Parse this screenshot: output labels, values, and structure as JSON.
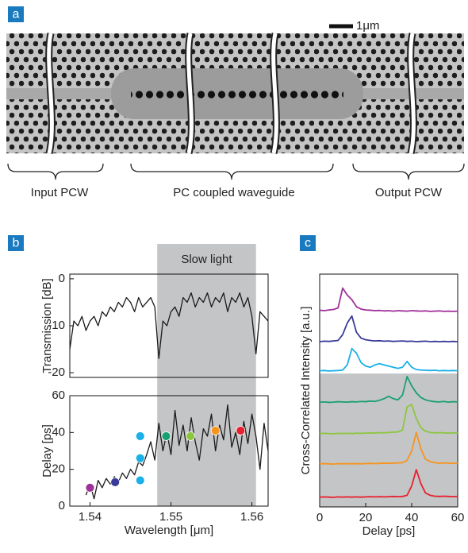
{
  "panels": {
    "a": "a",
    "b": "b",
    "c": "c"
  },
  "figure_a": {
    "scale_bar": "1μm",
    "regions": [
      "Input PCW",
      "PC coupled waveguide",
      "Output PCW"
    ]
  },
  "chart_data": [
    {
      "type": "line",
      "ylabel": "Transmission [dB]",
      "color": "#1a1a1a",
      "xlim": [
        1.5375,
        1.562
      ],
      "ylim": [
        -21,
        1
      ],
      "yticks": [
        0,
        -10,
        -20
      ],
      "highlight": {
        "label": "Slow light",
        "xrange": [
          1.5483,
          1.5605
        ]
      },
      "x": [
        1.5375,
        1.538,
        1.5385,
        1.539,
        1.5395,
        1.54,
        1.5405,
        1.541,
        1.5415,
        1.542,
        1.5425,
        1.543,
        1.5435,
        1.544,
        1.5445,
        1.545,
        1.5455,
        1.546,
        1.5465,
        1.547,
        1.5475,
        1.548,
        1.5485,
        1.549,
        1.5495,
        1.55,
        1.5505,
        1.551,
        1.5515,
        1.552,
        1.5525,
        1.553,
        1.5535,
        1.554,
        1.5545,
        1.555,
        1.5555,
        1.556,
        1.5565,
        1.557,
        1.5575,
        1.558,
        1.5585,
        1.559,
        1.5595,
        1.56,
        1.5605,
        1.561,
        1.5615,
        1.562
      ],
      "values": [
        -15,
        -9,
        -10,
        -8,
        -11,
        -9,
        -8,
        -10,
        -7,
        -8,
        -6,
        -7,
        -5,
        -6,
        -4,
        -5,
        -7,
        -4,
        -6,
        -5,
        -4,
        -6,
        -17,
        -9,
        -10,
        -7,
        -6,
        -8,
        -4,
        -5,
        -3,
        -6,
        -4,
        -5,
        -3,
        -6,
        -4,
        -5,
        -3,
        -7,
        -4,
        -5,
        -3,
        -6,
        -4,
        -8,
        -16,
        -7,
        -8,
        -9
      ]
    },
    {
      "type": "line",
      "ylabel": "Delay [ps]",
      "xlabel": "Wavelength [μm]",
      "color": "#1a1a1a",
      "xlim": [
        1.5375,
        1.562
      ],
      "ylim": [
        0,
        60
      ],
      "xticks": [
        1.54,
        1.55,
        1.56
      ],
      "yticks": [
        0,
        20,
        40,
        60
      ],
      "x": [
        1.5395,
        1.54,
        1.5405,
        1.541,
        1.5415,
        1.542,
        1.5425,
        1.543,
        1.5435,
        1.544,
        1.5445,
        1.545,
        1.5455,
        1.546,
        1.5465,
        1.547,
        1.5475,
        1.548,
        1.5485,
        1.549,
        1.5495,
        1.55,
        1.5505,
        1.551,
        1.5515,
        1.552,
        1.5525,
        1.553,
        1.5535,
        1.554,
        1.5545,
        1.555,
        1.5555,
        1.556,
        1.5565,
        1.557,
        1.5575,
        1.558,
        1.5585,
        1.559,
        1.5595,
        1.56,
        1.5605,
        1.561,
        1.5615,
        1.562
      ],
      "values": [
        6,
        12,
        4,
        14,
        10,
        15,
        12,
        16,
        13,
        18,
        15,
        20,
        17,
        24,
        22,
        28,
        35,
        25,
        45,
        30,
        40,
        28,
        52,
        33,
        44,
        30,
        48,
        35,
        25,
        42,
        38,
        50,
        30,
        44,
        36,
        55,
        32,
        40,
        28,
        46,
        34,
        50,
        38,
        20,
        45,
        30
      ],
      "points": {
        "x": [
          1.54,
          1.5431,
          1.5462,
          1.5462,
          1.5462,
          1.5494,
          1.5524,
          1.5555,
          1.5586
        ],
        "y": [
          10,
          13,
          14,
          26,
          38,
          38,
          38,
          41,
          41
        ],
        "colors": [
          "#a0309a",
          "#3a3a9a",
          "#1ab0e8",
          "#1ab0e8",
          "#1ab0e8",
          "#1aa070",
          "#8cc63f",
          "#f7941d",
          "#e8212e"
        ]
      }
    },
    {
      "type": "line",
      "ylabel": "Cross-Correlated Intensity [a.u.]",
      "xlabel": "Delay [ps]",
      "xlim": [
        0,
        60
      ],
      "ylim": [
        0,
        100
      ],
      "xticks": [
        0,
        20,
        40,
        60
      ],
      "highlight": {
        "ylim": [
          0,
          57.3
        ]
      },
      "x": [
        0,
        2,
        4,
        6,
        8,
        10,
        12,
        14,
        16,
        18,
        20,
        22,
        24,
        26,
        28,
        30,
        32,
        34,
        36,
        38,
        40,
        42,
        44,
        46,
        48,
        50,
        52,
        54,
        56,
        58,
        60
      ],
      "series": [
        {
          "color": "#a0309a",
          "values": [
            84.5,
            84.3,
            84.6,
            84.8,
            85.5,
            94,
            91,
            89,
            86,
            85,
            84.6,
            84.5,
            84.3,
            84.4,
            84.2,
            84.3,
            84.1,
            84.3,
            84.2,
            84.1,
            84.3,
            84.2,
            84.1,
            84.2,
            84,
            84.1,
            84.2,
            84,
            84.1,
            84,
            84.1
          ]
        },
        {
          "color": "#3a3a9a",
          "values": [
            71,
            71.2,
            71.1,
            71.3,
            71.5,
            74,
            79,
            82,
            75,
            72.5,
            71.8,
            71.5,
            71.3,
            71.4,
            71.2,
            71.3,
            71.1,
            71.2,
            71.3,
            71.1,
            71.2,
            71,
            71.1,
            71.2,
            71,
            71.1,
            71,
            71.1,
            71,
            71.1,
            71
          ]
        },
        {
          "color": "#1ab0e8",
          "values": [
            58.5,
            58.6,
            58.4,
            58.5,
            58.6,
            58.8,
            61,
            68,
            66,
            62,
            60.5,
            60,
            61,
            61.5,
            61,
            60.5,
            60,
            59.5,
            60,
            62.5,
            60,
            59,
            58.8,
            58.7,
            58.6,
            58.7,
            58.5,
            58.6,
            58.5,
            58.6,
            58.5
          ]
        },
        {
          "color": "#1aa070",
          "values": [
            45,
            45.1,
            44.9,
            45,
            45.2,
            45.1,
            45,
            45.2,
            45.1,
            45.3,
            45.2,
            45.5,
            45.3,
            45.8,
            46.5,
            47.5,
            46.5,
            46,
            48,
            56,
            52,
            49,
            47,
            46,
            45.5,
            45.2,
            45.1,
            45.3,
            45,
            45.2,
            45.1
          ]
        },
        {
          "color": "#8cc63f",
          "values": [
            31.5,
            31.6,
            31.5,
            31.4,
            31.6,
            31.5,
            31.6,
            31.5,
            31.7,
            31.6,
            31.7,
            31.8,
            31.7,
            31.9,
            31.8,
            32,
            32.1,
            32.2,
            33,
            43,
            44,
            38,
            34,
            32.5,
            32,
            31.8,
            31.9,
            31.8,
            31.7,
            31.8,
            31.8
          ]
        },
        {
          "color": "#f7941d",
          "values": [
            18.5,
            18.6,
            18.5,
            18.4,
            18.6,
            18.5,
            18.6,
            18.5,
            18.6,
            18.5,
            18.6,
            18.7,
            18.6,
            18.7,
            18.8,
            18.7,
            18.8,
            18.9,
            19,
            20,
            24,
            32,
            25,
            20.5,
            19.5,
            19,
            18.8,
            18.9,
            18.8,
            18.7,
            18.8
          ]
        },
        {
          "color": "#e8212e",
          "values": [
            4.2,
            4.3,
            4.2,
            4.1,
            4.3,
            4.2,
            4.3,
            4.2,
            4.3,
            4.2,
            4.3,
            4.4,
            4.3,
            4.4,
            4.3,
            4.4,
            4.5,
            4.4,
            4.5,
            5,
            9,
            16,
            10,
            6,
            5,
            4.6,
            4.5,
            4.6,
            4.5,
            4.4,
            4.5
          ]
        }
      ]
    }
  ]
}
